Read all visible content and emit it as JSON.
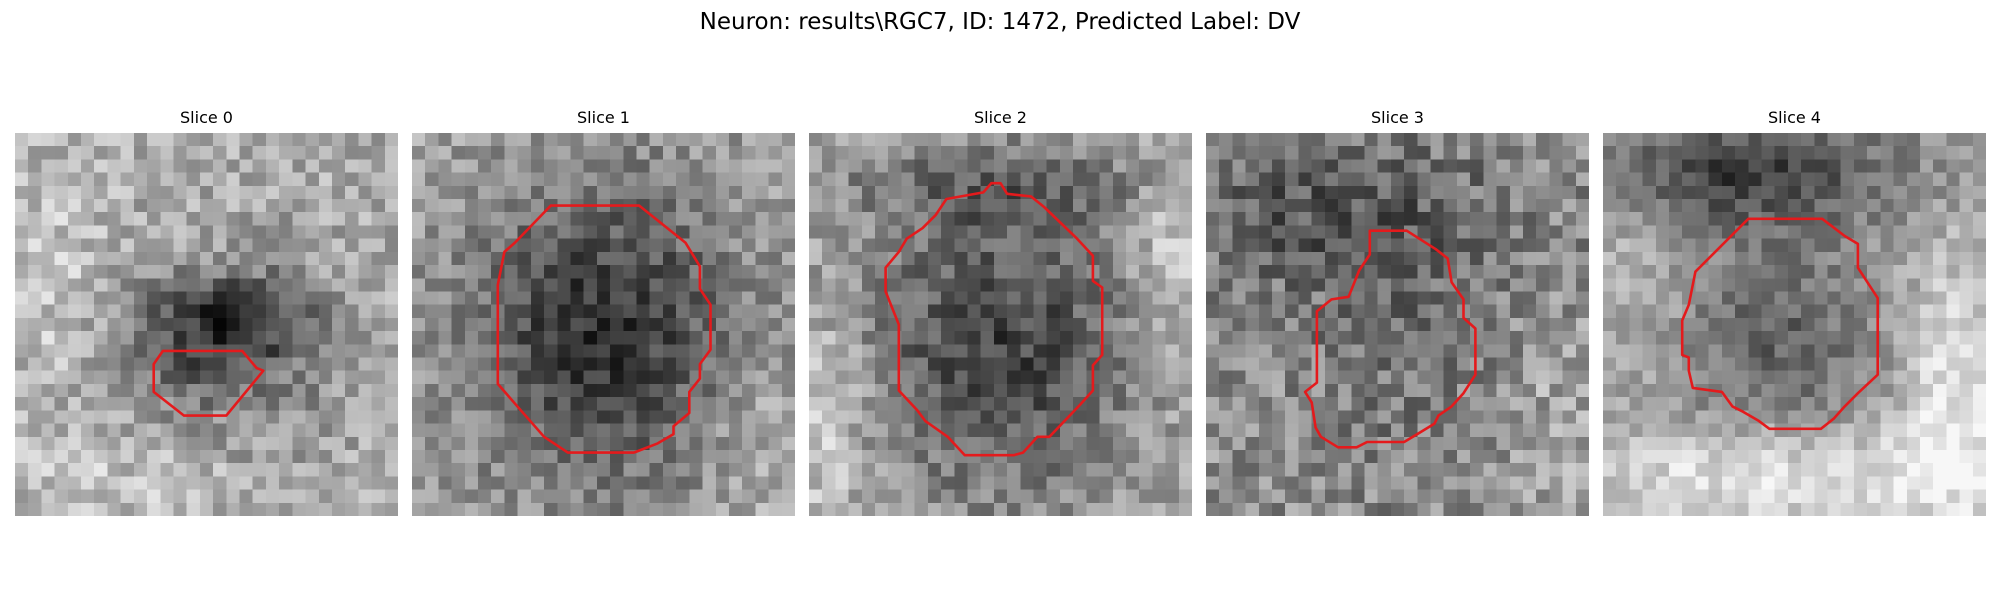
{
  "figure": {
    "title": "Neuron: results\\RGC7, ID: 1472, Predicted Label: DV",
    "contour_color": "#e41a1c",
    "colormap": "gray",
    "slices": [
      {
        "title": "Slice 0"
      },
      {
        "title": "Slice 1"
      },
      {
        "title": "Slice 2"
      },
      {
        "title": "Slice 3"
      },
      {
        "title": "Slice 4"
      }
    ]
  }
}
